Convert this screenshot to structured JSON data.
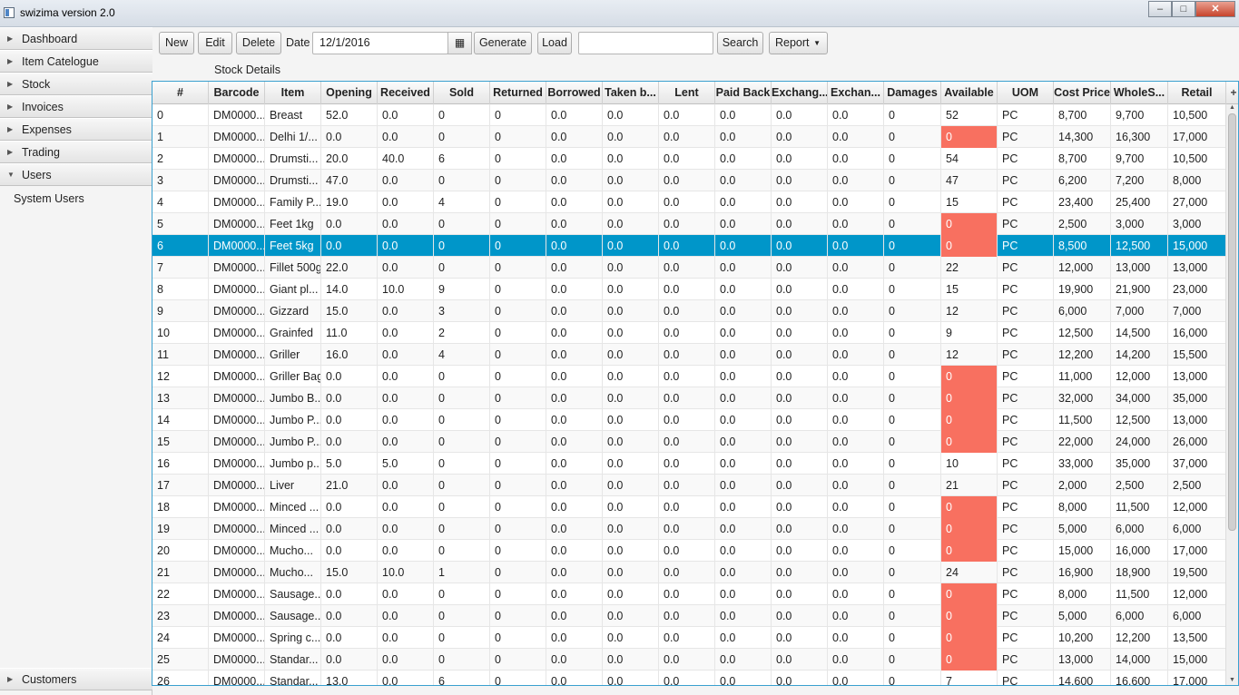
{
  "window": {
    "title": "swizima version 2.0",
    "controls": [
      "minimize-icon",
      "maximize-icon",
      "close-icon"
    ]
  },
  "sidebar": {
    "items": [
      {
        "label": "Dashboard",
        "expanded": false
      },
      {
        "label": "Item Catelogue",
        "expanded": false
      },
      {
        "label": "Stock",
        "expanded": false
      },
      {
        "label": "Invoices",
        "expanded": false
      },
      {
        "label": "Expenses",
        "expanded": false
      },
      {
        "label": "Trading",
        "expanded": false
      },
      {
        "label": "Users",
        "expanded": true
      }
    ],
    "sub_items": [
      "System Users"
    ],
    "bottom_item": {
      "label": "Customers",
      "expanded": false
    }
  },
  "toolbar": {
    "new_label": "New",
    "edit_label": "Edit",
    "delete_label": "Delete",
    "date_label": "Date",
    "date_value": "12/1/2016",
    "generate_label": "Generate",
    "load_label": "Load",
    "search_value": "",
    "search_label": "Search",
    "report_label": "Report"
  },
  "section_title": "Stock Details",
  "colors": {
    "selected_row": "#0096c9",
    "zero_available": "#f87060",
    "table_border": "#3aa0cf"
  },
  "table": {
    "columns": [
      "#",
      "Barcode",
      "Item",
      "Opening",
      "Received",
      "Sold",
      "Returned",
      "Borrowed",
      "Taken b...",
      "Lent",
      "Paid Back",
      "Exchang...",
      "Exchan...",
      "Damages",
      "Available",
      "UOM",
      "Cost Price",
      "WholeS...",
      "Retail"
    ],
    "selected_index": 6,
    "rows": [
      [
        "0",
        "DM0000...",
        "Breast",
        "52.0",
        "0.0",
        "0",
        "0",
        "0.0",
        "0.0",
        "0.0",
        "0.0",
        "0.0",
        "0.0",
        "0",
        "52",
        "PC",
        "8,700",
        "9,700",
        "10,500"
      ],
      [
        "1",
        "DM0000...",
        "Delhi 1/...",
        "0.0",
        "0.0",
        "0",
        "0",
        "0.0",
        "0.0",
        "0.0",
        "0.0",
        "0.0",
        "0.0",
        "0",
        "0",
        "PC",
        "14,300",
        "16,300",
        "17,000"
      ],
      [
        "2",
        "DM0000...",
        "Drumsti...",
        "20.0",
        "40.0",
        "6",
        "0",
        "0.0",
        "0.0",
        "0.0",
        "0.0",
        "0.0",
        "0.0",
        "0",
        "54",
        "PC",
        "8,700",
        "9,700",
        "10,500"
      ],
      [
        "3",
        "DM0000...",
        "Drumsti...",
        "47.0",
        "0.0",
        "0",
        "0",
        "0.0",
        "0.0",
        "0.0",
        "0.0",
        "0.0",
        "0.0",
        "0",
        "47",
        "PC",
        "6,200",
        "7,200",
        "8,000"
      ],
      [
        "4",
        "DM0000...",
        "Family P...",
        "19.0",
        "0.0",
        "4",
        "0",
        "0.0",
        "0.0",
        "0.0",
        "0.0",
        "0.0",
        "0.0",
        "0",
        "15",
        "PC",
        "23,400",
        "25,400",
        "27,000"
      ],
      [
        "5",
        "DM0000...",
        "Feet 1kg",
        "0.0",
        "0.0",
        "0",
        "0",
        "0.0",
        "0.0",
        "0.0",
        "0.0",
        "0.0",
        "0.0",
        "0",
        "0",
        "PC",
        "2,500",
        "3,000",
        "3,000"
      ],
      [
        "6",
        "DM0000...",
        "Feet 5kg",
        "0.0",
        "0.0",
        "0",
        "0",
        "0.0",
        "0.0",
        "0.0",
        "0.0",
        "0.0",
        "0.0",
        "0",
        "0",
        "PC",
        "8,500",
        "12,500",
        "15,000"
      ],
      [
        "7",
        "DM0000...",
        "Fillet 500g",
        "22.0",
        "0.0",
        "0",
        "0",
        "0.0",
        "0.0",
        "0.0",
        "0.0",
        "0.0",
        "0.0",
        "0",
        "22",
        "PC",
        "12,000",
        "13,000",
        "13,000"
      ],
      [
        "8",
        "DM0000...",
        "Giant pl...",
        "14.0",
        "10.0",
        "9",
        "0",
        "0.0",
        "0.0",
        "0.0",
        "0.0",
        "0.0",
        "0.0",
        "0",
        "15",
        "PC",
        "19,900",
        "21,900",
        "23,000"
      ],
      [
        "9",
        "DM0000...",
        "Gizzard",
        "15.0",
        "0.0",
        "3",
        "0",
        "0.0",
        "0.0",
        "0.0",
        "0.0",
        "0.0",
        "0.0",
        "0",
        "12",
        "PC",
        "6,000",
        "7,000",
        "7,000"
      ],
      [
        "10",
        "DM0000...",
        "Grainfed",
        "11.0",
        "0.0",
        "2",
        "0",
        "0.0",
        "0.0",
        "0.0",
        "0.0",
        "0.0",
        "0.0",
        "0",
        "9",
        "PC",
        "12,500",
        "14,500",
        "16,000"
      ],
      [
        "11",
        "DM0000...",
        "Griller",
        "16.0",
        "0.0",
        "4",
        "0",
        "0.0",
        "0.0",
        "0.0",
        "0.0",
        "0.0",
        "0.0",
        "0",
        "12",
        "PC",
        "12,200",
        "14,200",
        "15,500"
      ],
      [
        "12",
        "DM0000...",
        "Griller Bag",
        "0.0",
        "0.0",
        "0",
        "0",
        "0.0",
        "0.0",
        "0.0",
        "0.0",
        "0.0",
        "0.0",
        "0",
        "0",
        "PC",
        "11,000",
        "12,000",
        "13,000"
      ],
      [
        "13",
        "DM0000...",
        "Jumbo B...",
        "0.0",
        "0.0",
        "0",
        "0",
        "0.0",
        "0.0",
        "0.0",
        "0.0",
        "0.0",
        "0.0",
        "0",
        "0",
        "PC",
        "32,000",
        "34,000",
        "35,000"
      ],
      [
        "14",
        "DM0000...",
        "Jumbo P...",
        "0.0",
        "0.0",
        "0",
        "0",
        "0.0",
        "0.0",
        "0.0",
        "0.0",
        "0.0",
        "0.0",
        "0",
        "0",
        "PC",
        "11,500",
        "12,500",
        "13,000"
      ],
      [
        "15",
        "DM0000...",
        "Jumbo P...",
        "0.0",
        "0.0",
        "0",
        "0",
        "0.0",
        "0.0",
        "0.0",
        "0.0",
        "0.0",
        "0.0",
        "0",
        "0",
        "PC",
        "22,000",
        "24,000",
        "26,000"
      ],
      [
        "16",
        "DM0000...",
        "Jumbo p...",
        "5.0",
        "5.0",
        "0",
        "0",
        "0.0",
        "0.0",
        "0.0",
        "0.0",
        "0.0",
        "0.0",
        "0",
        "10",
        "PC",
        "33,000",
        "35,000",
        "37,000"
      ],
      [
        "17",
        "DM0000...",
        "Liver",
        "21.0",
        "0.0",
        "0",
        "0",
        "0.0",
        "0.0",
        "0.0",
        "0.0",
        "0.0",
        "0.0",
        "0",
        "21",
        "PC",
        "2,000",
        "2,500",
        "2,500"
      ],
      [
        "18",
        "DM0000...",
        "Minced ...",
        "0.0",
        "0.0",
        "0",
        "0",
        "0.0",
        "0.0",
        "0.0",
        "0.0",
        "0.0",
        "0.0",
        "0",
        "0",
        "PC",
        "8,000",
        "11,500",
        "12,000"
      ],
      [
        "19",
        "DM0000...",
        "Minced ...",
        "0.0",
        "0.0",
        "0",
        "0",
        "0.0",
        "0.0",
        "0.0",
        "0.0",
        "0.0",
        "0.0",
        "0",
        "0",
        "PC",
        "5,000",
        "6,000",
        "6,000"
      ],
      [
        "20",
        "DM0000...",
        "Mucho...",
        "0.0",
        "0.0",
        "0",
        "0",
        "0.0",
        "0.0",
        "0.0",
        "0.0",
        "0.0",
        "0.0",
        "0",
        "0",
        "PC",
        "15,000",
        "16,000",
        "17,000"
      ],
      [
        "21",
        "DM0000...",
        "Mucho...",
        "15.0",
        "10.0",
        "1",
        "0",
        "0.0",
        "0.0",
        "0.0",
        "0.0",
        "0.0",
        "0.0",
        "0",
        "24",
        "PC",
        "16,900",
        "18,900",
        "19,500"
      ],
      [
        "22",
        "DM0000...",
        "Sausage...",
        "0.0",
        "0.0",
        "0",
        "0",
        "0.0",
        "0.0",
        "0.0",
        "0.0",
        "0.0",
        "0.0",
        "0",
        "0",
        "PC",
        "8,000",
        "11,500",
        "12,000"
      ],
      [
        "23",
        "DM0000...",
        "Sausage...",
        "0.0",
        "0.0",
        "0",
        "0",
        "0.0",
        "0.0",
        "0.0",
        "0.0",
        "0.0",
        "0.0",
        "0",
        "0",
        "PC",
        "5,000",
        "6,000",
        "6,000"
      ],
      [
        "24",
        "DM0000...",
        "Spring c...",
        "0.0",
        "0.0",
        "0",
        "0",
        "0.0",
        "0.0",
        "0.0",
        "0.0",
        "0.0",
        "0.0",
        "0",
        "0",
        "PC",
        "10,200",
        "12,200",
        "13,500"
      ],
      [
        "25",
        "DM0000...",
        "Standar...",
        "0.0",
        "0.0",
        "0",
        "0",
        "0.0",
        "0.0",
        "0.0",
        "0.0",
        "0.0",
        "0.0",
        "0",
        "0",
        "PC",
        "13,000",
        "14,000",
        "15,000"
      ],
      [
        "26",
        "DM0000...",
        "Standar...",
        "13.0",
        "0.0",
        "6",
        "0",
        "0.0",
        "0.0",
        "0.0",
        "0.0",
        "0.0",
        "0.0",
        "0",
        "7",
        "PC",
        "14,600",
        "16,600",
        "17,000"
      ]
    ]
  }
}
